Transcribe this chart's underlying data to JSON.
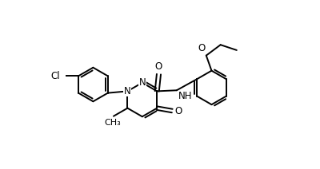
{
  "background": "#ffffff",
  "line_color": "#000000",
  "lw": 1.4,
  "dbo": 0.012,
  "fs": 8.5,
  "fig_w": 4.0,
  "fig_h": 2.12,
  "dpi": 100,
  "xlim": [
    0.0,
    1.0
  ],
  "ylim": [
    0.05,
    0.95
  ]
}
